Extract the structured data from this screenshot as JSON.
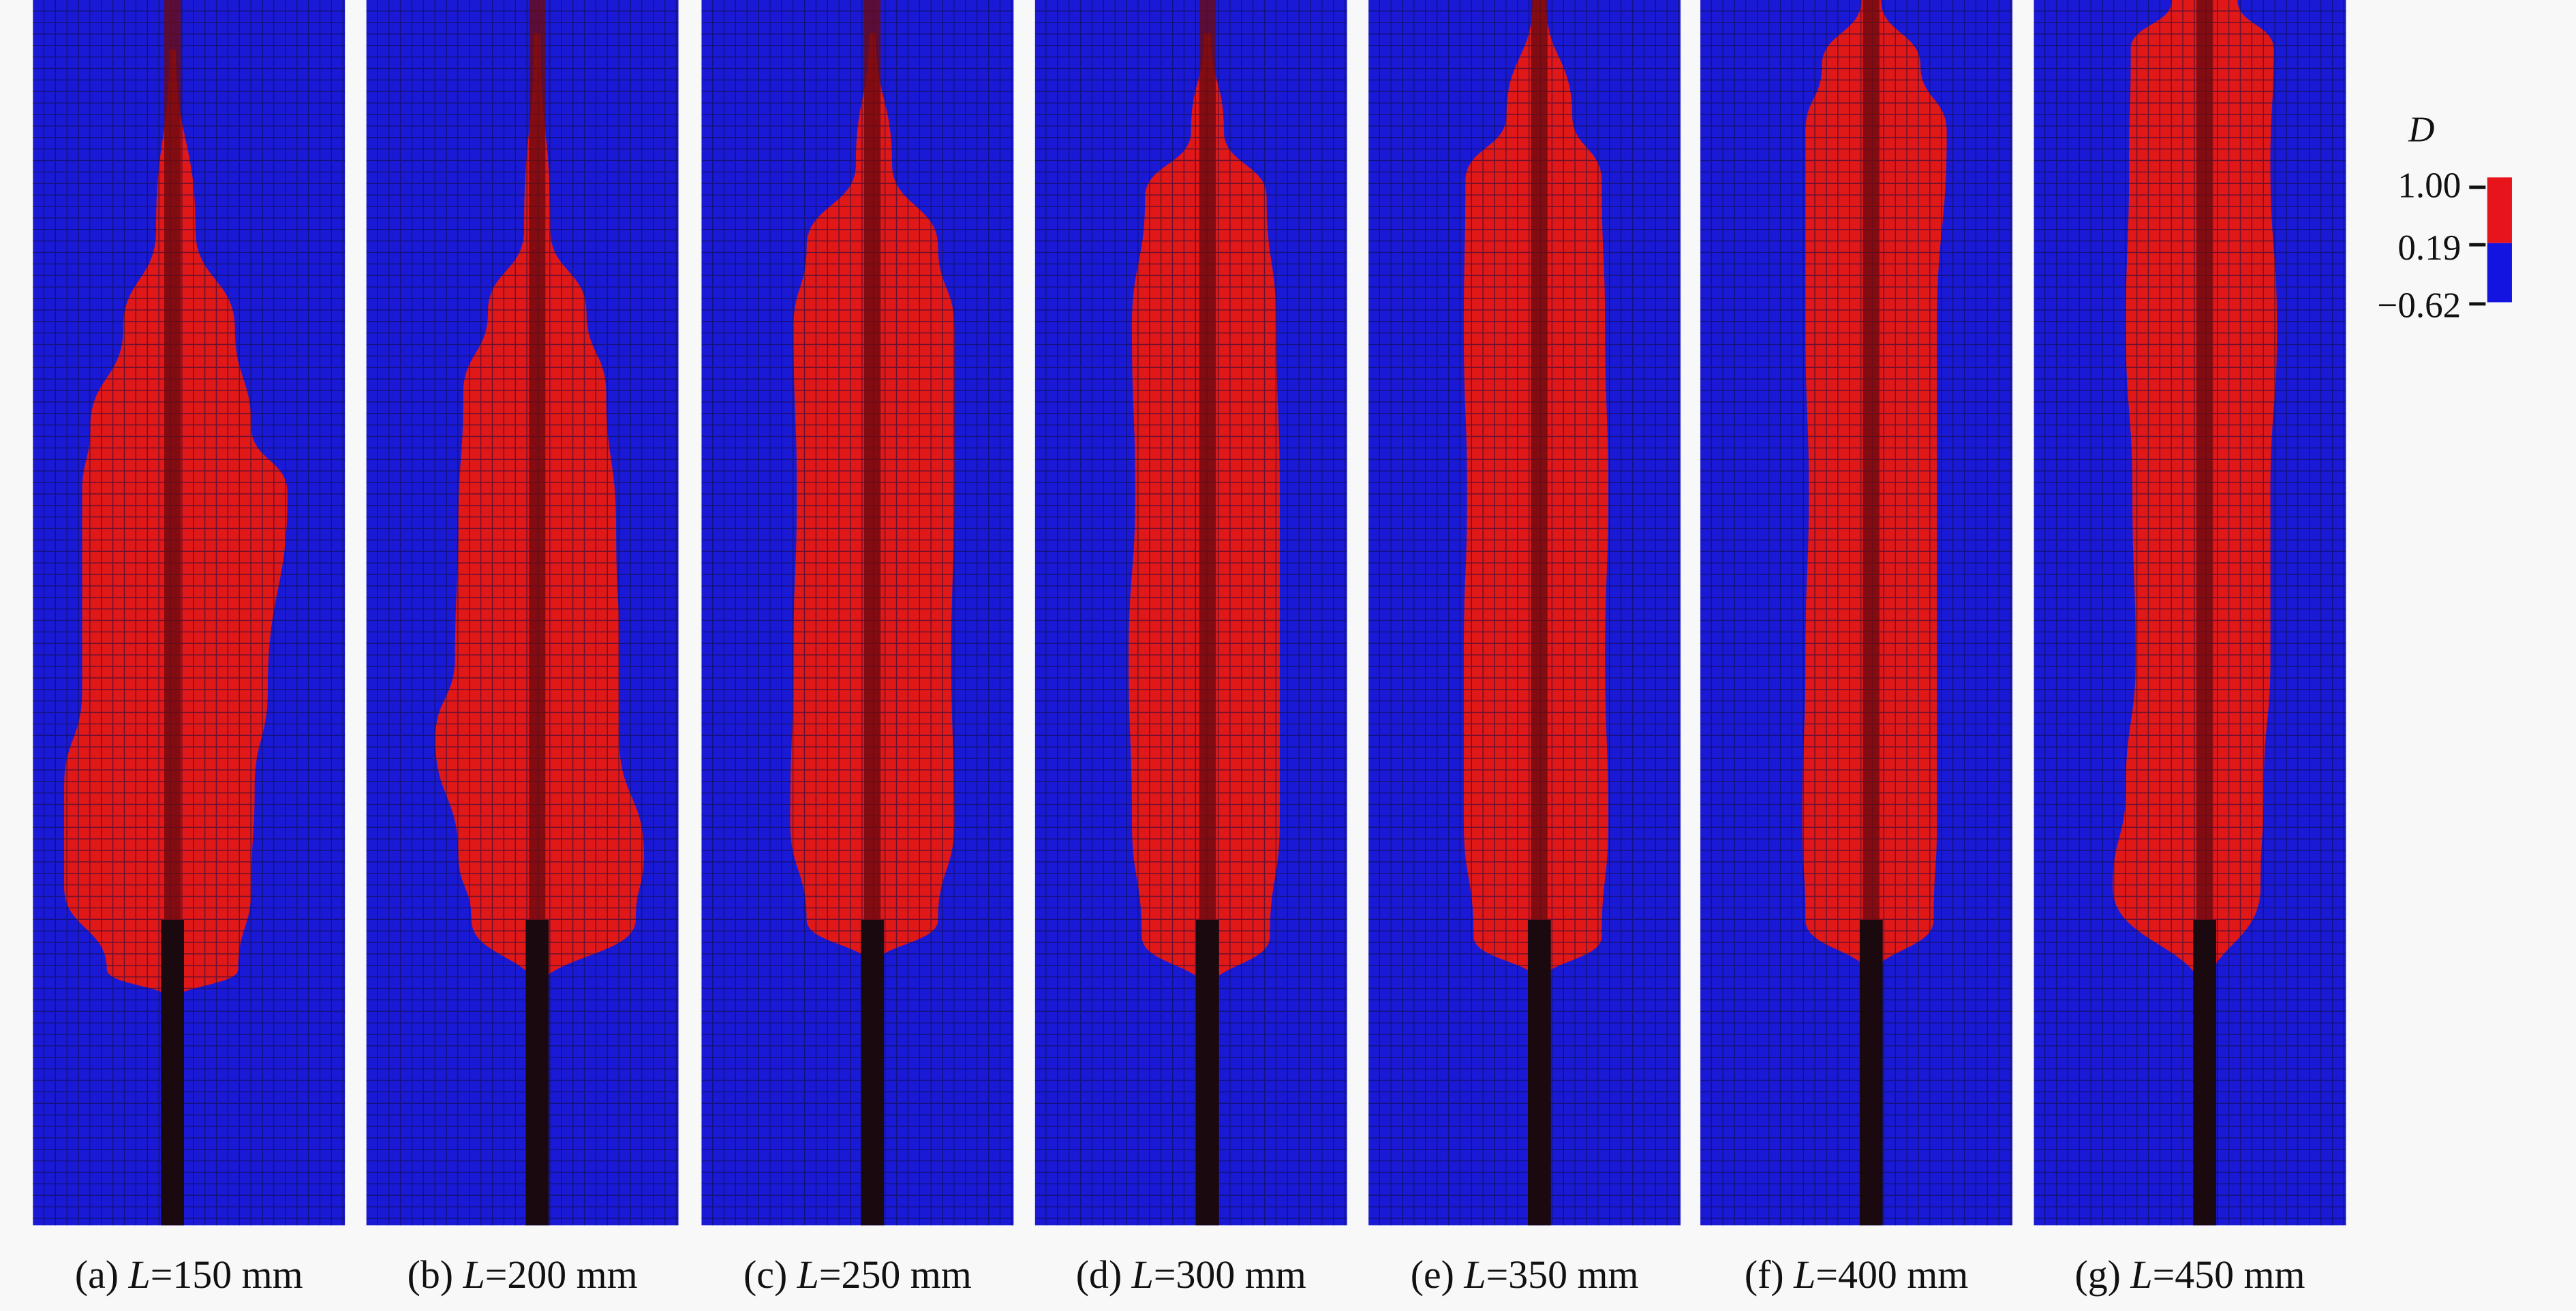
{
  "figure": {
    "panels": [
      {
        "label": "(a) ",
        "var": "L",
        "value": "=150 mm"
      },
      {
        "label": "(b) ",
        "var": "L",
        "value": "=200 mm"
      },
      {
        "label": "(c) ",
        "var": "L",
        "value": "=250 mm"
      },
      {
        "label": "(d) ",
        "var": "L",
        "value": "=300 mm"
      },
      {
        "label": "(e) ",
        "var": "L",
        "value": "=350 mm"
      },
      {
        "label": "(f) ",
        "var": "L",
        "value": "=400 mm"
      },
      {
        "label": "(g) ",
        "var": "L",
        "value": "=450 mm"
      }
    ],
    "legend": {
      "title": "D",
      "ticks": [
        "1.00",
        "0.19",
        "−0.62"
      ],
      "colors": {
        "damaged": "#e8141c",
        "undamaged": "#1414e0"
      }
    },
    "colors": {
      "mesh_blue": "#1a1ad6",
      "damage_red": "#e01818",
      "rod": "#1a0a10",
      "background": "#f8f8f8"
    }
  }
}
